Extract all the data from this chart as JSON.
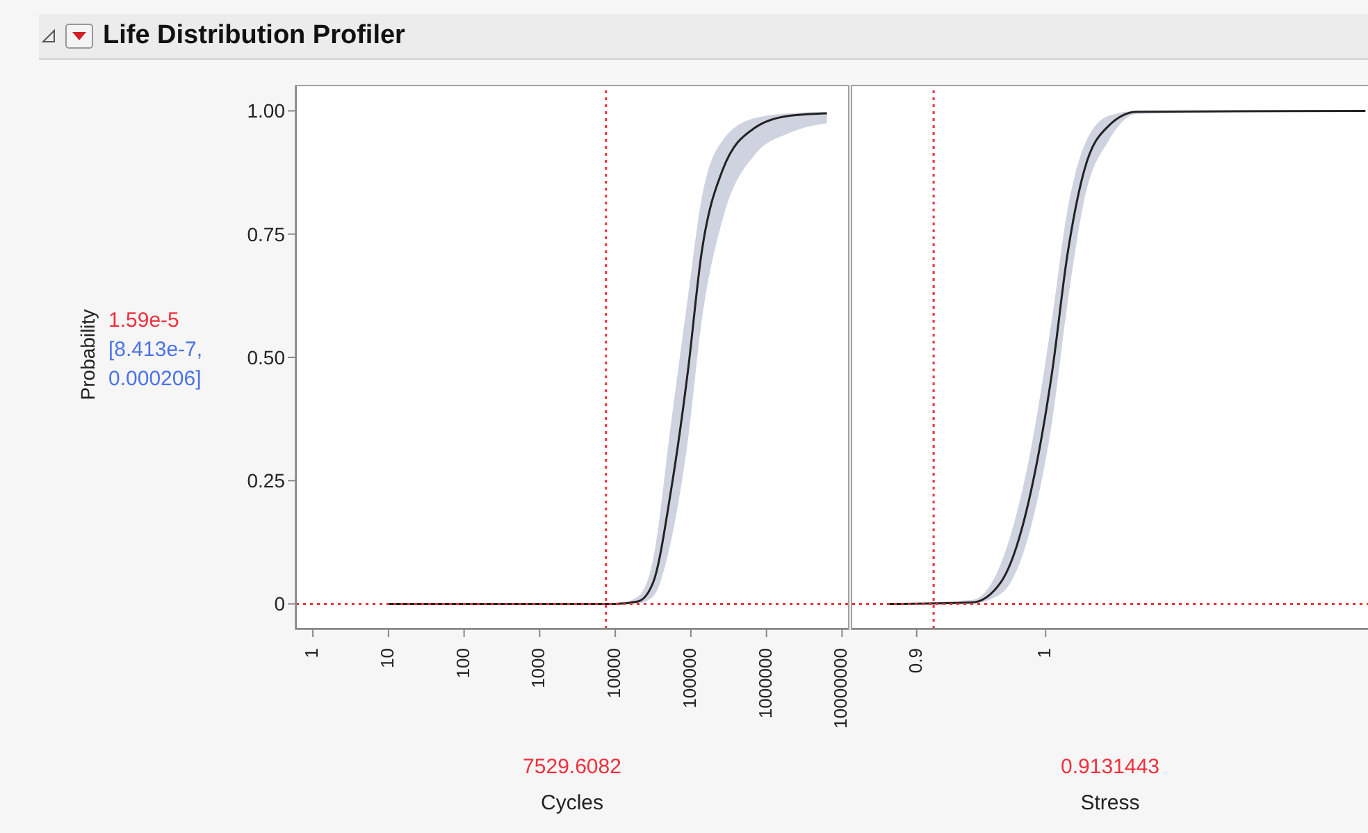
{
  "chart_data": [
    {
      "type": "line",
      "title": "Life Distribution Profiler",
      "xlabel": "Cycles",
      "ylabel": "Probability",
      "log": "x",
      "x": [
        10,
        100,
        1000,
        10000,
        20000,
        31600,
        55000,
        91000,
        138000,
        263000,
        692000,
        2000000,
        6300000
      ],
      "series": [
        {
          "color": "#222222",
          "values": [
            0,
            0,
            0,
            0,
            0.005,
            0.043,
            0.233,
            0.47,
            0.71,
            0.88,
            0.965,
            0.99,
            0.995
          ],
          "upper": [
            0,
            0,
            0,
            0,
            0.015,
            0.09,
            0.37,
            0.62,
            0.82,
            0.94,
            0.985,
            0.995,
            0.998
          ],
          "lower": [
            0,
            0,
            0,
            0,
            0.001,
            0.015,
            0.13,
            0.33,
            0.57,
            0.78,
            0.91,
            0.955,
            0.975
          ]
        }
      ],
      "xlim": [
        0.6,
        12000000
      ],
      "xticks": [
        1,
        10,
        100,
        1000,
        10000,
        100000,
        1000000,
        10000000
      ],
      "ylim": [
        -0.05,
        1.05
      ],
      "yticks": [
        0,
        0.25,
        {
          "value": 0.5,
          "label": "0.50"
        },
        {
          "value": 0.75,
          "label": "0.75"
        },
        {
          "value": 1,
          "label": "1.00"
        }
      ],
      "ref_lines": [
        {
          "axis": "x",
          "value": 7529.6082,
          "label": "7529.6082",
          "color": "#f0303c",
          "line_style": "dotted"
        },
        {
          "axis": "y",
          "value": 1.59e-05,
          "label": "1.59e-5",
          "color": "#f0303c",
          "line_style": "dotted"
        }
      ],
      "annotations": [
        "[8.413e-7, 0.000206]"
      ],
      "grid": false,
      "legend": false,
      "marker": "none",
      "line_style": "solid"
    },
    {
      "type": "line",
      "xlabel": "Stress",
      "x": [
        0.878,
        0.943,
        0.965,
        0.989,
        1.005,
        1.017,
        1.03,
        1.049,
        1.071,
        1.248
      ],
      "series": [
        {
          "color": "#222222",
          "values": [
            0,
            0.003,
            0.043,
            0.233,
            0.47,
            0.71,
            0.88,
            0.97,
            0.998,
            1
          ],
          "upper": [
            0,
            0.008,
            0.08,
            0.32,
            0.58,
            0.8,
            0.93,
            0.99,
            1,
            1
          ],
          "lower": [
            0,
            0.001,
            0.02,
            0.16,
            0.37,
            0.61,
            0.82,
            0.94,
            0.994,
            1
          ]
        }
      ],
      "xlim": [
        0.85,
        1.25
      ],
      "xticks": [
        0.9,
        1
      ],
      "ylim": [
        -0.05,
        1.05
      ],
      "tick_labels": "x",
      "ref_lines": [
        {
          "axis": "x",
          "value": 0.9131443,
          "label": "0.9131443",
          "color": "#f0303c",
          "line_style": "dotted"
        },
        {
          "axis": "y",
          "value": 1.59e-05,
          "label": null,
          "color": "#f0303c",
          "line_style": "dotted"
        }
      ],
      "grid": false,
      "legend": false,
      "marker": "none",
      "line_style": "solid"
    }
  ]
}
